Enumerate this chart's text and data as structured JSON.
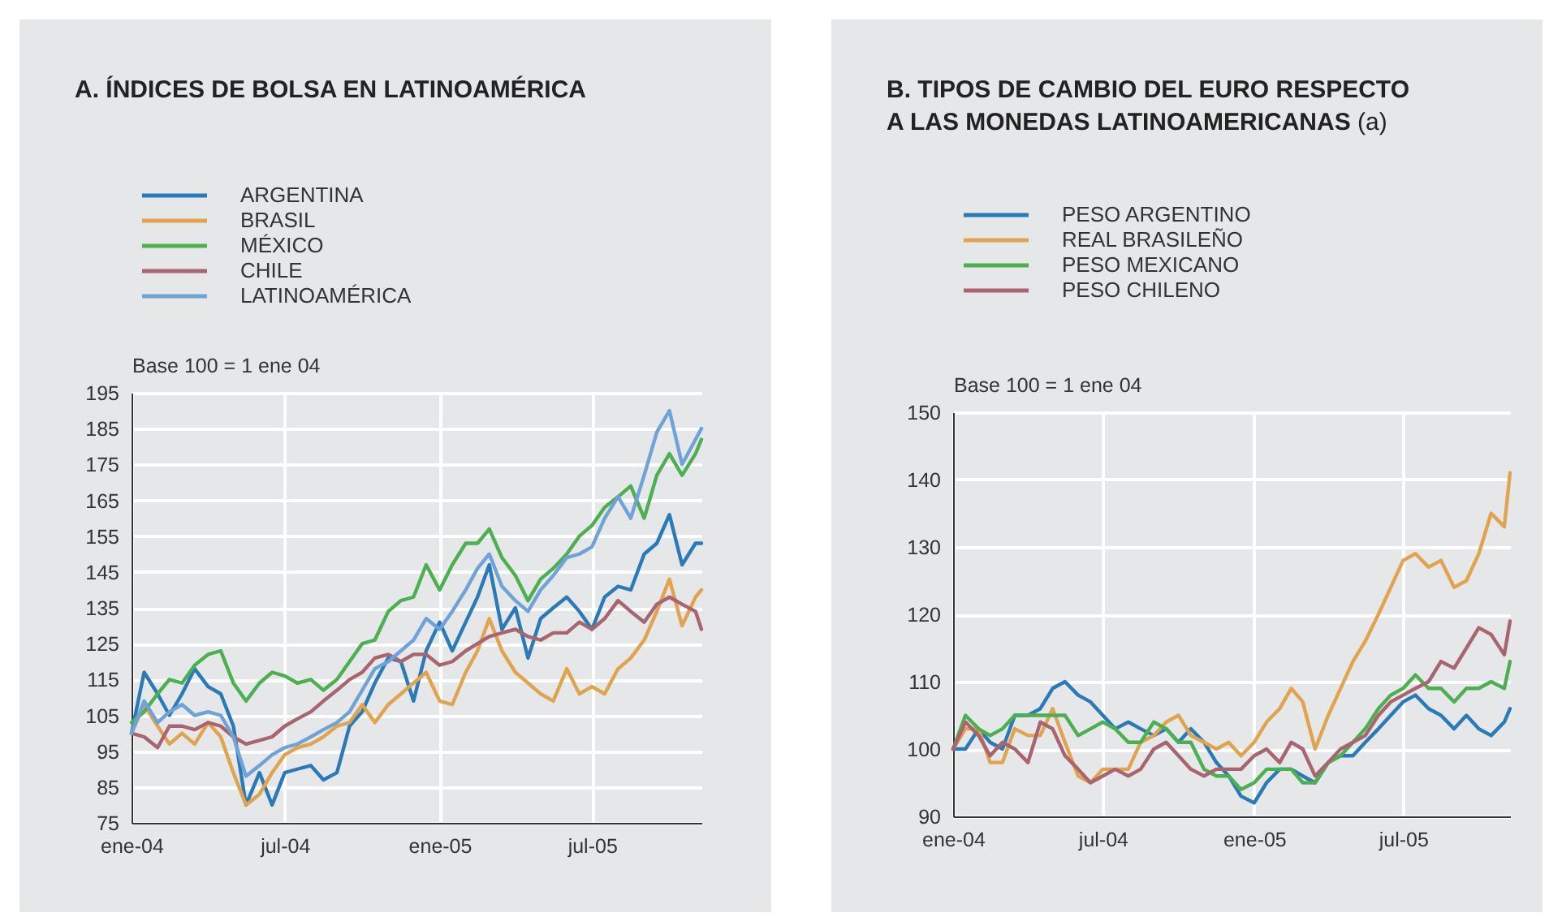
{
  "chart_data": [
    {
      "type": "line",
      "title": "A. ÍNDICES DE BOLSA EN LATINOAMÉRICA",
      "ylabel": "Base 100 = 1 ene 04",
      "x": [
        "2004-01-01",
        "2004-01-16",
        "2004-02-01",
        "2004-02-15",
        "2004-03-01",
        "2004-03-16",
        "2004-04-01",
        "2004-04-16",
        "2004-05-01",
        "2004-05-16",
        "2004-06-01",
        "2004-06-16",
        "2004-07-01",
        "2004-07-16",
        "2004-08-01",
        "2004-08-16",
        "2004-09-01",
        "2004-09-16",
        "2004-10-01",
        "2004-10-16",
        "2004-11-01",
        "2004-11-16",
        "2004-12-01",
        "2004-12-16",
        "2005-01-01",
        "2005-01-16",
        "2005-02-01",
        "2005-02-15",
        "2005-03-01",
        "2005-03-16",
        "2005-04-01",
        "2005-04-16",
        "2005-05-01",
        "2005-05-16",
        "2005-06-01",
        "2005-06-16",
        "2005-07-01",
        "2005-07-16",
        "2005-08-01",
        "2005-08-16",
        "2005-09-01",
        "2005-09-16",
        "2005-10-01",
        "2005-10-16",
        "2005-11-01",
        "2005-11-08"
      ],
      "series": [
        {
          "name": "ARGENTINA",
          "color": "#2a7ab8",
          "values": [
            100,
            117,
            111,
            105,
            111,
            118,
            113,
            111,
            102,
            80,
            89,
            80,
            89,
            90,
            91,
            87,
            89,
            102,
            106,
            114,
            121,
            120,
            109,
            123,
            131,
            123,
            131,
            138,
            147,
            129,
            135,
            121,
            132,
            135,
            138,
            134,
            129,
            138,
            141,
            140,
            150,
            153,
            161,
            147,
            153,
            153
          ]
        },
        {
          "name": "BRASIL",
          "color": "#e0a34e",
          "values": [
            100,
            108,
            102,
            97,
            100,
            97,
            103,
            99,
            89,
            80,
            83,
            89,
            94,
            96,
            97,
            99,
            102,
            103,
            108,
            103,
            108,
            111,
            114,
            117,
            109,
            108,
            117,
            123,
            132,
            123,
            117,
            114,
            111,
            109,
            118,
            111,
            113,
            111,
            118,
            121,
            126,
            134,
            143,
            130,
            138,
            140
          ]
        },
        {
          "name": "MÉXICO",
          "color": "#4cb050",
          "values": [
            103,
            106,
            111,
            115,
            114,
            119,
            122,
            123,
            114,
            109,
            114,
            117,
            116,
            114,
            115,
            112,
            115,
            120,
            125,
            126,
            134,
            137,
            138,
            147,
            140,
            147,
            153,
            153,
            157,
            149,
            144,
            137,
            143,
            146,
            150,
            155,
            158,
            163,
            166,
            169,
            160,
            172,
            178,
            172,
            178,
            182
          ]
        },
        {
          "name": "CHILE",
          "color": "#a8656f",
          "values": [
            100,
            99,
            96,
            102,
            102,
            101,
            103,
            102,
            99,
            97,
            98,
            99,
            102,
            104,
            106,
            109,
            112,
            115,
            117,
            121,
            122,
            120,
            122,
            122,
            119,
            120,
            123,
            125,
            127,
            128,
            129,
            127,
            126,
            128,
            128,
            131,
            129,
            132,
            137,
            134,
            131,
            136,
            138,
            136,
            134,
            129
          ]
        },
        {
          "name": "LATINOAMÉRICA",
          "color": "#6fa3d8",
          "values": [
            100,
            109,
            103,
            106,
            108,
            105,
            106,
            105,
            99,
            88,
            91,
            94,
            96,
            97,
            99,
            101,
            103,
            106,
            112,
            118,
            120,
            123,
            126,
            132,
            129,
            134,
            140,
            146,
            150,
            141,
            137,
            134,
            140,
            144,
            149,
            150,
            152,
            160,
            166,
            160,
            172,
            184,
            190,
            175,
            182,
            185
          ]
        }
      ],
      "xlim": [
        "2004-01-01",
        "2005-11-08"
      ],
      "xticks": [
        {
          "value": "2004-01-01",
          "label": "ene-04"
        },
        {
          "value": "2004-07-01",
          "label": "jul-04"
        },
        {
          "value": "2005-01-01",
          "label": "ene-05"
        },
        {
          "value": "2005-07-01",
          "label": "jul-05"
        }
      ],
      "ylim": [
        75,
        195
      ],
      "yticks": [
        75,
        85,
        95,
        105,
        115,
        125,
        135,
        145,
        155,
        165,
        175,
        185,
        195
      ],
      "grid": true,
      "legend": "top left"
    },
    {
      "type": "line",
      "title": "B. TIPOS DE CAMBIO DEL EURO RESPECTO A LAS MONEDAS LATINOAMERICANAS (a)",
      "ylabel": "Base 100 = 1 ene 04",
      "x": [
        "2004-01-01",
        "2004-01-16",
        "2004-02-01",
        "2004-02-15",
        "2004-03-01",
        "2004-03-16",
        "2004-04-01",
        "2004-04-16",
        "2004-05-01",
        "2004-05-16",
        "2004-06-01",
        "2004-06-16",
        "2004-07-01",
        "2004-07-16",
        "2004-08-01",
        "2004-08-16",
        "2004-09-01",
        "2004-09-16",
        "2004-10-01",
        "2004-10-16",
        "2004-11-01",
        "2004-11-16",
        "2004-12-01",
        "2004-12-16",
        "2005-01-01",
        "2005-01-16",
        "2005-02-01",
        "2005-02-15",
        "2005-03-01",
        "2005-03-16",
        "2005-04-01",
        "2005-04-16",
        "2005-05-01",
        "2005-05-16",
        "2005-06-01",
        "2005-06-16",
        "2005-07-01",
        "2005-07-16",
        "2005-08-01",
        "2005-08-16",
        "2005-09-01",
        "2005-09-16",
        "2005-10-01",
        "2005-10-16",
        "2005-11-01",
        "2005-11-08"
      ],
      "series": [
        {
          "name": "PESO ARGENTINO",
          "color": "#2a7ab8",
          "values": [
            100,
            100,
            103,
            101,
            100,
            105,
            105,
            106,
            109,
            110,
            108,
            107,
            105,
            103,
            104,
            103,
            102,
            103,
            101,
            103,
            101,
            98,
            96,
            93,
            92,
            95,
            97,
            97,
            96,
            95,
            98,
            99,
            99,
            101,
            103,
            105,
            107,
            108,
            106,
            105,
            103,
            105,
            103,
            102,
            104,
            106
          ]
        },
        {
          "name": "REAL BRASILEÑO",
          "color": "#e0a34e",
          "values": [
            100,
            103,
            103,
            98,
            98,
            103,
            102,
            102,
            106,
            101,
            96,
            95,
            97,
            97,
            97,
            101,
            102,
            104,
            105,
            102,
            101,
            100,
            101,
            99,
            101,
            104,
            106,
            109,
            107,
            100,
            105,
            109,
            113,
            116,
            120,
            124,
            128,
            129,
            127,
            128,
            124,
            125,
            129,
            135,
            133,
            141
          ]
        },
        {
          "name": "PESO MEXICANO",
          "color": "#4cb050",
          "values": [
            100,
            105,
            103,
            102,
            103,
            105,
            105,
            105,
            105,
            105,
            102,
            103,
            104,
            103,
            101,
            101,
            104,
            103,
            101,
            101,
            97,
            96,
            96,
            94,
            95,
            97,
            97,
            97,
            95,
            95,
            98,
            99,
            101,
            103,
            106,
            108,
            109,
            111,
            109,
            109,
            107,
            109,
            109,
            110,
            109,
            113
          ]
        },
        {
          "name": "PESO CHILENO",
          "color": "#a8656f",
          "values": [
            100,
            104,
            102,
            99,
            101,
            100,
            98,
            104,
            103,
            99,
            97,
            95,
            96,
            97,
            96,
            97,
            100,
            101,
            99,
            97,
            96,
            97,
            97,
            97,
            99,
            100,
            98,
            101,
            100,
            96,
            98,
            100,
            101,
            102,
            105,
            107,
            108,
            109,
            110,
            113,
            112,
            115,
            118,
            117,
            114,
            119
          ]
        }
      ],
      "xlim": [
        "2004-01-01",
        "2005-11-08"
      ],
      "xticks": [
        {
          "value": "2004-01-01",
          "label": "ene-04"
        },
        {
          "value": "2004-07-01",
          "label": "jul-04"
        },
        {
          "value": "2005-01-01",
          "label": "ene-05"
        },
        {
          "value": "2005-07-01",
          "label": "jul-05"
        }
      ],
      "ylim": [
        90,
        150
      ],
      "yticks": [
        90,
        100,
        110,
        120,
        130,
        140,
        150
      ],
      "grid": true,
      "legend": "top left"
    }
  ]
}
